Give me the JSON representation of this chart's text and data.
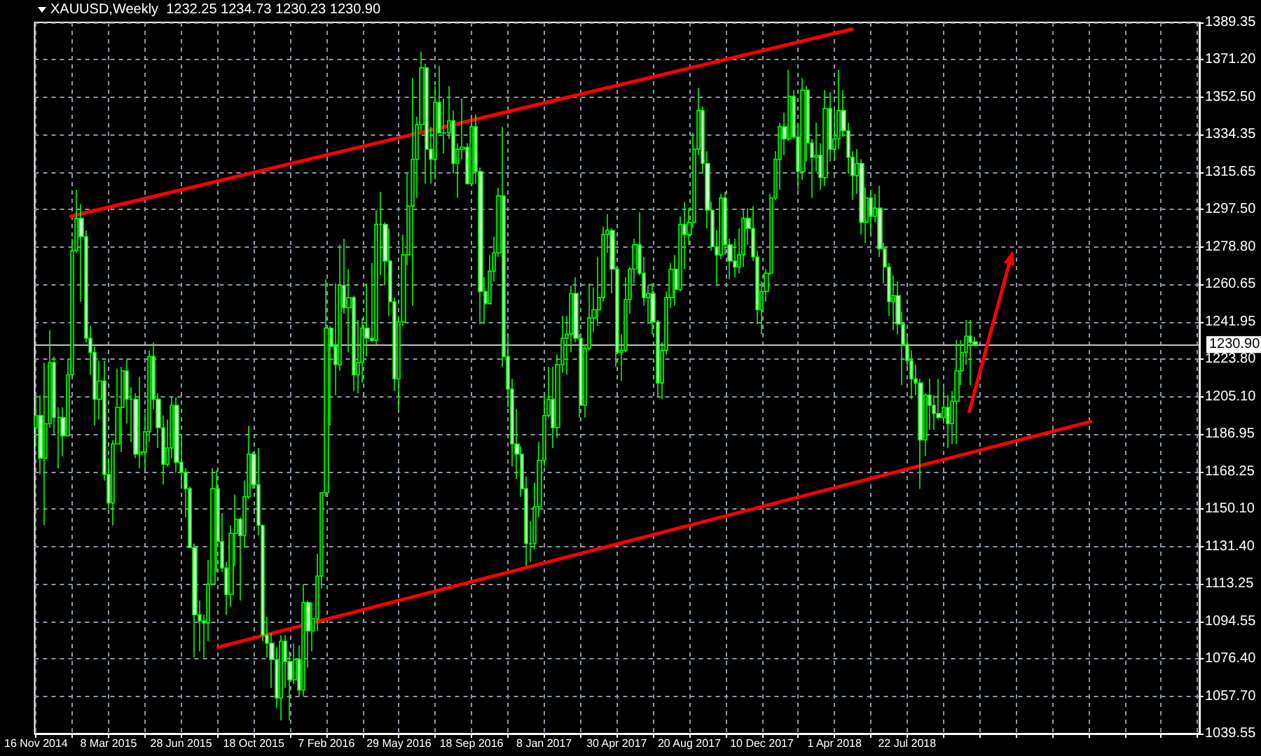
{
  "chart_data": {
    "type": "candlestick",
    "title": "XAUUSD,Weekly  1232.25 1234.73 1230.23 1230.90",
    "color": "#00ff00",
    "grid": true,
    "x": [
      "2014-11-16",
      "2014-11-23",
      "2014-11-30",
      "2014-12-07",
      "2014-12-14",
      "2014-12-21",
      "2014-12-28",
      "2015-01-04",
      "2015-01-11",
      "2015-01-18",
      "2015-01-25",
      "2015-02-01",
      "2015-02-08",
      "2015-02-15",
      "2015-02-22",
      "2015-03-01",
      "2015-03-08",
      "2015-03-15",
      "2015-03-22",
      "2015-03-29",
      "2015-04-05",
      "2015-04-12",
      "2015-04-19",
      "2015-04-26",
      "2015-05-03",
      "2015-05-10",
      "2015-05-17",
      "2015-05-24",
      "2015-05-31",
      "2015-06-07",
      "2015-06-14",
      "2015-06-21",
      "2015-06-28",
      "2015-07-05",
      "2015-07-12",
      "2015-07-19",
      "2015-07-26",
      "2015-08-02",
      "2015-08-09",
      "2015-08-16",
      "2015-08-23",
      "2015-08-30",
      "2015-09-06",
      "2015-09-13",
      "2015-09-20",
      "2015-09-27",
      "2015-10-04",
      "2015-10-11",
      "2015-10-18",
      "2015-10-25",
      "2015-11-01",
      "2015-11-08",
      "2015-11-15",
      "2015-11-22",
      "2015-11-29",
      "2015-12-06",
      "2015-12-13",
      "2015-12-20",
      "2015-12-27",
      "2016-01-03",
      "2016-01-10",
      "2016-01-17",
      "2016-01-24",
      "2016-01-31",
      "2016-02-07",
      "2016-02-14",
      "2016-02-21",
      "2016-02-28",
      "2016-03-06",
      "2016-03-13",
      "2016-03-20",
      "2016-03-27",
      "2016-04-03",
      "2016-04-10",
      "2016-04-17",
      "2016-04-24",
      "2016-05-01",
      "2016-05-08",
      "2016-05-15",
      "2016-05-22",
      "2016-05-29",
      "2016-06-05",
      "2016-06-12",
      "2016-06-19",
      "2016-06-26",
      "2016-07-03",
      "2016-07-10",
      "2016-07-17",
      "2016-07-24",
      "2016-07-31",
      "2016-08-07",
      "2016-08-14",
      "2016-08-21",
      "2016-08-28",
      "2016-09-04",
      "2016-09-11",
      "2016-09-18",
      "2016-09-25",
      "2016-10-02",
      "2016-10-09",
      "2016-10-16",
      "2016-10-23",
      "2016-10-30",
      "2016-11-06",
      "2016-11-13",
      "2016-11-20",
      "2016-11-27",
      "2016-12-04",
      "2016-12-11",
      "2016-12-18",
      "2016-12-25",
      "2017-01-01",
      "2017-01-08",
      "2017-01-15",
      "2017-01-22",
      "2017-01-29",
      "2017-02-05",
      "2017-02-12",
      "2017-02-19",
      "2017-02-26",
      "2017-03-05",
      "2017-03-12",
      "2017-03-19",
      "2017-03-26",
      "2017-04-02",
      "2017-04-09",
      "2017-04-16",
      "2017-04-23",
      "2017-04-30",
      "2017-05-07",
      "2017-05-14",
      "2017-05-21",
      "2017-05-28",
      "2017-06-04",
      "2017-06-11",
      "2017-06-18",
      "2017-06-25",
      "2017-07-02",
      "2017-07-09",
      "2017-07-16",
      "2017-07-23",
      "2017-07-30",
      "2017-08-06",
      "2017-08-13",
      "2017-08-20",
      "2017-08-27",
      "2017-09-03",
      "2017-09-10",
      "2017-09-17",
      "2017-09-24",
      "2017-10-01",
      "2017-10-08",
      "2017-10-15",
      "2017-10-22",
      "2017-10-29",
      "2017-11-05",
      "2017-11-12",
      "2017-11-19",
      "2017-11-26",
      "2017-12-03",
      "2017-12-10",
      "2017-12-17",
      "2017-12-24",
      "2017-12-31",
      "2018-01-07",
      "2018-01-14",
      "2018-01-21",
      "2018-01-28",
      "2018-02-04",
      "2018-02-11",
      "2018-02-18",
      "2018-02-25",
      "2018-03-04",
      "2018-03-11",
      "2018-03-18",
      "2018-03-25",
      "2018-04-01",
      "2018-04-08",
      "2018-04-15",
      "2018-04-22",
      "2018-04-29",
      "2018-05-06",
      "2018-05-13",
      "2018-05-20",
      "2018-05-27",
      "2018-06-03",
      "2018-06-10",
      "2018-06-17",
      "2018-06-24",
      "2018-07-01",
      "2018-07-08",
      "2018-07-15",
      "2018-07-22",
      "2018-07-29",
      "2018-08-05",
      "2018-08-12",
      "2018-08-19",
      "2018-08-26",
      "2018-09-02",
      "2018-09-09",
      "2018-09-16",
      "2018-09-23",
      "2018-09-30",
      "2018-10-07",
      "2018-10-14",
      "2018-10-21",
      "2018-10-28",
      "2018-11-04"
    ],
    "ohlc": [
      [
        1190,
        1207,
        1181,
        1196
      ],
      [
        1196,
        1206,
        1167,
        1175
      ],
      [
        1175,
        1222,
        1142,
        1192
      ],
      [
        1192,
        1238,
        1190,
        1222
      ],
      [
        1222,
        1225,
        1187,
        1195
      ],
      [
        1195,
        1200,
        1170,
        1195
      ],
      [
        1195,
        1200,
        1176,
        1186
      ],
      [
        1186,
        1224,
        1186,
        1216
      ],
      [
        1216,
        1283,
        1215,
        1277
      ],
      [
        1277,
        1307,
        1276,
        1293
      ],
      [
        1293,
        1300,
        1252,
        1284
      ],
      [
        1284,
        1287,
        1232,
        1234
      ],
      [
        1234,
        1240,
        1216,
        1227
      ],
      [
        1227,
        1230,
        1191,
        1204
      ],
      [
        1204,
        1223,
        1194,
        1213
      ],
      [
        1213,
        1223,
        1164,
        1167
      ],
      [
        1167,
        1175,
        1150,
        1153
      ],
      [
        1153,
        1184,
        1142,
        1182
      ],
      [
        1182,
        1219,
        1182,
        1200
      ],
      [
        1200,
        1220,
        1178,
        1218
      ],
      [
        1218,
        1224,
        1192,
        1204
      ],
      [
        1204,
        1210,
        1183,
        1204
      ],
      [
        1204,
        1207,
        1175,
        1177
      ],
      [
        1177,
        1215,
        1170,
        1178
      ],
      [
        1178,
        1197,
        1170,
        1188
      ],
      [
        1188,
        1228,
        1183,
        1225
      ],
      [
        1225,
        1232,
        1199,
        1204
      ],
      [
        1204,
        1207,
        1180,
        1190
      ],
      [
        1190,
        1196,
        1162,
        1172
      ],
      [
        1172,
        1194,
        1171,
        1180
      ],
      [
        1180,
        1205,
        1175,
        1201
      ],
      [
        1201,
        1205,
        1168,
        1173
      ],
      [
        1173,
        1187,
        1162,
        1168
      ],
      [
        1168,
        1170,
        1146,
        1160
      ],
      [
        1160,
        1161,
        1131,
        1131
      ],
      [
        1131,
        1133,
        1077,
        1098
      ],
      [
        1098,
        1105,
        1080,
        1095
      ],
      [
        1095,
        1098,
        1077,
        1094
      ],
      [
        1094,
        1125,
        1085,
        1113
      ],
      [
        1113,
        1170,
        1113,
        1160
      ],
      [
        1160,
        1169,
        1119,
        1134
      ],
      [
        1134,
        1148,
        1119,
        1121
      ],
      [
        1121,
        1124,
        1098,
        1108
      ],
      [
        1108,
        1142,
        1102,
        1138
      ],
      [
        1138,
        1157,
        1122,
        1145
      ],
      [
        1145,
        1146,
        1105,
        1137
      ],
      [
        1137,
        1164,
        1131,
        1156
      ],
      [
        1156,
        1191,
        1155,
        1177
      ],
      [
        1177,
        1178,
        1160,
        1162
      ],
      [
        1162,
        1180,
        1137,
        1142
      ],
      [
        1142,
        1142,
        1085,
        1088
      ],
      [
        1088,
        1097,
        1077,
        1084
      ],
      [
        1084,
        1089,
        1062,
        1076
      ],
      [
        1076,
        1082,
        1052,
        1057
      ],
      [
        1057,
        1088,
        1046,
        1085
      ],
      [
        1085,
        1088,
        1062,
        1075
      ],
      [
        1075,
        1080,
        1046,
        1066
      ],
      [
        1066,
        1084,
        1064,
        1076
      ],
      [
        1076,
        1083,
        1058,
        1061
      ],
      [
        1061,
        1113,
        1058,
        1104
      ],
      [
        1104,
        1105,
        1072,
        1090
      ],
      [
        1090,
        1104,
        1080,
        1096
      ],
      [
        1096,
        1128,
        1090,
        1117
      ],
      [
        1117,
        1158,
        1111,
        1158
      ],
      [
        1158,
        1263,
        1156,
        1239
      ],
      [
        1239,
        1240,
        1191,
        1230
      ],
      [
        1230,
        1261,
        1206,
        1221
      ],
      [
        1221,
        1280,
        1218,
        1260
      ],
      [
        1260,
        1283,
        1246,
        1249
      ],
      [
        1249,
        1268,
        1227,
        1254
      ],
      [
        1254,
        1255,
        1208,
        1216
      ],
      [
        1216,
        1243,
        1207,
        1222
      ],
      [
        1222,
        1244,
        1212,
        1239
      ],
      [
        1239,
        1261,
        1225,
        1234
      ],
      [
        1234,
        1271,
        1232,
        1233
      ],
      [
        1233,
        1297,
        1231,
        1290
      ],
      [
        1290,
        1306,
        1265,
        1290
      ],
      [
        1290,
        1291,
        1260,
        1272
      ],
      [
        1272,
        1288,
        1245,
        1252
      ],
      [
        1252,
        1254,
        1208,
        1214
      ],
      [
        1214,
        1244,
        1199,
        1242
      ],
      [
        1242,
        1285,
        1240,
        1275
      ],
      [
        1275,
        1315,
        1270,
        1299
      ],
      [
        1299,
        1362,
        1250,
        1322
      ],
      [
        1322,
        1343,
        1303,
        1339
      ],
      [
        1339,
        1375,
        1336,
        1367
      ],
      [
        1367,
        1369,
        1310,
        1327
      ],
      [
        1327,
        1338,
        1310,
        1322
      ],
      [
        1322,
        1358,
        1312,
        1350
      ],
      [
        1350,
        1368,
        1335,
        1335
      ],
      [
        1335,
        1352,
        1325,
        1335
      ],
      [
        1335,
        1358,
        1332,
        1341
      ],
      [
        1341,
        1346,
        1315,
        1320
      ],
      [
        1320,
        1330,
        1303,
        1327
      ],
      [
        1327,
        1352,
        1322,
        1328
      ],
      [
        1328,
        1330,
        1310,
        1310
      ],
      [
        1310,
        1343,
        1310,
        1338
      ],
      [
        1338,
        1344,
        1310,
        1316
      ],
      [
        1316,
        1318,
        1241,
        1257
      ],
      [
        1257,
        1264,
        1241,
        1251
      ],
      [
        1251,
        1275,
        1251,
        1267
      ],
      [
        1267,
        1284,
        1262,
        1276
      ],
      [
        1276,
        1308,
        1274,
        1304
      ],
      [
        1304,
        1338,
        1220,
        1225
      ],
      [
        1225,
        1236,
        1200,
        1209
      ],
      [
        1209,
        1214,
        1171,
        1182
      ],
      [
        1182,
        1199,
        1165,
        1177
      ],
      [
        1177,
        1181,
        1156,
        1160
      ],
      [
        1160,
        1166,
        1122,
        1133
      ],
      [
        1133,
        1144,
        1124,
        1133
      ],
      [
        1133,
        1163,
        1130,
        1151
      ],
      [
        1151,
        1183,
        1146,
        1174
      ],
      [
        1174,
        1207,
        1171,
        1196
      ],
      [
        1196,
        1220,
        1195,
        1204
      ],
      [
        1204,
        1220,
        1180,
        1190
      ],
      [
        1190,
        1226,
        1185,
        1221
      ],
      [
        1221,
        1245,
        1217,
        1234
      ],
      [
        1234,
        1245,
        1216,
        1236
      ],
      [
        1236,
        1260,
        1227,
        1256
      ],
      [
        1256,
        1264,
        1232,
        1234
      ],
      [
        1234,
        1236,
        1195,
        1201
      ],
      [
        1201,
        1231,
        1195,
        1229
      ],
      [
        1229,
        1261,
        1228,
        1244
      ],
      [
        1244,
        1259,
        1237,
        1248
      ],
      [
        1248,
        1274,
        1240,
        1254
      ],
      [
        1254,
        1289,
        1252,
        1285
      ],
      [
        1285,
        1295,
        1276,
        1287
      ],
      [
        1287,
        1288,
        1256,
        1268
      ],
      [
        1268,
        1269,
        1220,
        1227
      ],
      [
        1227,
        1236,
        1213,
        1228
      ],
      [
        1228,
        1264,
        1227,
        1253
      ],
      [
        1253,
        1269,
        1246,
        1268
      ],
      [
        1268,
        1283,
        1261,
        1280
      ],
      [
        1280,
        1296,
        1265,
        1266
      ],
      [
        1266,
        1274,
        1250,
        1254
      ],
      [
        1254,
        1260,
        1241,
        1256
      ],
      [
        1256,
        1261,
        1236,
        1242
      ],
      [
        1242,
        1243,
        1205,
        1212
      ],
      [
        1212,
        1232,
        1204,
        1228
      ],
      [
        1228,
        1257,
        1226,
        1254
      ],
      [
        1254,
        1271,
        1249,
        1268
      ],
      [
        1268,
        1275,
        1250,
        1258
      ],
      [
        1258,
        1294,
        1257,
        1290
      ],
      [
        1290,
        1301,
        1268,
        1285
      ],
      [
        1285,
        1298,
        1280,
        1291
      ],
      [
        1291,
        1335,
        1288,
        1327
      ],
      [
        1327,
        1357,
        1324,
        1346
      ],
      [
        1346,
        1348,
        1315,
        1320
      ],
      [
        1320,
        1326,
        1288,
        1297
      ],
      [
        1297,
        1301,
        1277,
        1279
      ],
      [
        1279,
        1287,
        1260,
        1275
      ],
      [
        1275,
        1305,
        1273,
        1303
      ],
      [
        1303,
        1306,
        1275,
        1280
      ],
      [
        1280,
        1283,
        1263,
        1272
      ],
      [
        1272,
        1283,
        1264,
        1269
      ],
      [
        1269,
        1288,
        1266,
        1275
      ],
      [
        1275,
        1297,
        1269,
        1293
      ],
      [
        1293,
        1298,
        1280,
        1288
      ],
      [
        1288,
        1299,
        1272,
        1274
      ],
      [
        1274,
        1277,
        1241,
        1248
      ],
      [
        1248,
        1262,
        1236,
        1257
      ],
      [
        1257,
        1268,
        1252,
        1266
      ],
      [
        1266,
        1305,
        1265,
        1303
      ],
      [
        1303,
        1326,
        1302,
        1322
      ],
      [
        1322,
        1340,
        1307,
        1338
      ],
      [
        1338,
        1345,
        1324,
        1332
      ],
      [
        1332,
        1366,
        1331,
        1353
      ],
      [
        1353,
        1356,
        1332,
        1333
      ],
      [
        1333,
        1340,
        1307,
        1316
      ],
      [
        1316,
        1362,
        1312,
        1356
      ],
      [
        1356,
        1358,
        1321,
        1330
      ],
      [
        1330,
        1332,
        1303,
        1323
      ],
      [
        1323,
        1340,
        1316,
        1324
      ],
      [
        1324,
        1330,
        1307,
        1313
      ],
      [
        1313,
        1356,
        1309,
        1347
      ],
      [
        1347,
        1355,
        1321,
        1327
      ],
      [
        1327,
        1346,
        1322,
        1332
      ],
      [
        1332,
        1366,
        1327,
        1346
      ],
      [
        1346,
        1356,
        1333,
        1336
      ],
      [
        1336,
        1340,
        1315,
        1323
      ],
      [
        1323,
        1326,
        1302,
        1314
      ],
      [
        1314,
        1327,
        1305,
        1320
      ],
      [
        1320,
        1322,
        1285,
        1291
      ],
      [
        1291,
        1308,
        1281,
        1303
      ],
      [
        1303,
        1307,
        1286,
        1294
      ],
      [
        1294,
        1305,
        1291,
        1298
      ],
      [
        1298,
        1309,
        1274,
        1278
      ],
      [
        1278,
        1281,
        1261,
        1269
      ],
      [
        1269,
        1271,
        1245,
        1252
      ],
      [
        1252,
        1265,
        1238,
        1255
      ],
      [
        1255,
        1262,
        1236,
        1241
      ],
      [
        1241,
        1247,
        1211,
        1231
      ],
      [
        1231,
        1236,
        1220,
        1223
      ],
      [
        1223,
        1228,
        1204,
        1214
      ],
      [
        1214,
        1221,
        1206,
        1212
      ],
      [
        1212,
        1214,
        1160,
        1184
      ],
      [
        1184,
        1207,
        1176,
        1206
      ],
      [
        1206,
        1214,
        1189,
        1201
      ],
      [
        1201,
        1206,
        1189,
        1197
      ],
      [
        1197,
        1214,
        1194,
        1195
      ],
      [
        1195,
        1210,
        1192,
        1200
      ],
      [
        1200,
        1206,
        1180,
        1192
      ],
      [
        1192,
        1208,
        1182,
        1203
      ],
      [
        1203,
        1233,
        1182,
        1218
      ],
      [
        1218,
        1233,
        1211,
        1227
      ],
      [
        1227,
        1243,
        1221,
        1235
      ],
      [
        1235,
        1243,
        1211,
        1232
      ],
      [
        1232.25,
        1234.73,
        1230.23,
        1230.9
      ]
    ],
    "series": [
      {
        "type": "line",
        "color": "#ff0000",
        "x": [
          "2015-01-09",
          "2018-04-28"
        ],
        "values": [
          1294,
          1386
        ]
      },
      {
        "type": "line",
        "color": "#ff0000",
        "x": [
          "2015-08-24",
          "2019-05-01"
        ],
        "values": [
          1082,
          1193
        ]
      }
    ],
    "ref_lines": [
      {
        "axis": "y",
        "value": 1230.9,
        "label": "1230.90",
        "color": "#c0c0c0"
      }
    ],
    "xlim": [
      "2014-11-14",
      "2019-10-16"
    ],
    "xticks": [
      {
        "value": "2014-11-16",
        "label": "16 Nov 2014"
      },
      {
        "value": "2015-01-11",
        "label": null
      },
      {
        "value": "2015-03-08",
        "label": "8 Mar 2015"
      },
      {
        "value": "2015-05-03",
        "label": null
      },
      {
        "value": "2015-06-28",
        "label": "28 Jun 2015"
      },
      {
        "value": "2015-08-23",
        "label": null
      },
      {
        "value": "2015-10-18",
        "label": "18 Oct 2015"
      },
      {
        "value": "2015-12-13",
        "label": null
      },
      {
        "value": "2016-02-07",
        "label": "7 Feb 2016"
      },
      {
        "value": "2016-04-03",
        "label": null
      },
      {
        "value": "2016-05-29",
        "label": "29 May 2016"
      },
      {
        "value": "2016-07-24",
        "label": null
      },
      {
        "value": "2016-09-18",
        "label": "18 Sep 2016"
      },
      {
        "value": "2016-11-13",
        "label": null
      },
      {
        "value": "2017-01-08",
        "label": "8 Jan 2017"
      },
      {
        "value": "2017-03-05",
        "label": null
      },
      {
        "value": "2017-04-30",
        "label": "30 Apr 2017"
      },
      {
        "value": "2017-06-25",
        "label": null
      },
      {
        "value": "2017-08-20",
        "label": "20 Aug 2017"
      },
      {
        "value": "2017-10-15",
        "label": null
      },
      {
        "value": "2017-12-10",
        "label": "10 Dec 2017"
      },
      {
        "value": "2018-02-04",
        "label": null
      },
      {
        "value": "2018-04-01",
        "label": "1 Apr 2018"
      },
      {
        "value": "2018-05-27",
        "label": null
      },
      {
        "value": "2018-07-22",
        "label": "22 Jul 2018"
      },
      {
        "value": "2018-09-16",
        "label": null
      },
      {
        "value": "2018-11-11",
        "label": null
      },
      {
        "value": "2019-01-06",
        "label": null
      },
      {
        "value": "2019-03-03",
        "label": null
      },
      {
        "value": "2019-04-28",
        "label": null
      },
      {
        "value": "2019-06-23",
        "label": null
      },
      {
        "value": "2019-08-18",
        "label": null
      },
      {
        "value": "2019-10-13",
        "label": null
      }
    ],
    "ylim": [
      1039.55,
      1389.35
    ],
    "yticks": [
      1039.55,
      {
        "value": 1057.7,
        "label": "1057.70"
      },
      {
        "value": 1076.4,
        "label": "1076.40"
      },
      1094.55,
      1113.25,
      {
        "value": 1131.4,
        "label": "1131.40"
      },
      {
        "value": 1150.1,
        "label": "1150.10"
      },
      1168.25,
      1186.95,
      {
        "value": 1205.1,
        "label": "1205.10"
      },
      {
        "value": 1223.8,
        "label": "1223.80"
      },
      1241.95,
      1260.65,
      {
        "value": 1278.8,
        "label": "1278.80"
      },
      {
        "value": 1297.5,
        "label": "1297.50"
      },
      1315.65,
      1334.35,
      {
        "value": 1352.5,
        "label": "1352.50"
      },
      {
        "value": 1371.2,
        "label": "1371.20"
      },
      1389.35
    ]
  }
}
